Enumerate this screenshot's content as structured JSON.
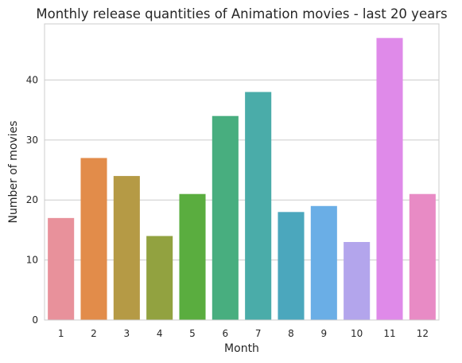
{
  "chart_data": {
    "type": "bar",
    "title": "Monthly release quantities of Animation movies - last 20 years",
    "xlabel": "Month",
    "ylabel": "Number of movies",
    "categories": [
      "1",
      "2",
      "3",
      "4",
      "5",
      "6",
      "7",
      "8",
      "9",
      "10",
      "11",
      "12"
    ],
    "values": [
      17,
      27,
      24,
      14,
      21,
      34,
      38,
      18,
      19,
      13,
      47,
      21
    ],
    "ylim": [
      0,
      49.35
    ],
    "yticks": [
      0,
      10,
      20,
      30,
      40
    ],
    "ytick_labels": [
      "0",
      "10",
      "20",
      "30",
      "40"
    ],
    "grid": "horizontal",
    "legend": "none",
    "colors": [
      "#e8919b",
      "#e28c4a",
      "#b59a45",
      "#92a240",
      "#5aad3f",
      "#48ae7f",
      "#4aaca9",
      "#4ba7bd",
      "#6aaee6",
      "#b3a5ec",
      "#df8ae9",
      "#e88bc5"
    ],
    "axis_color": "#cccccc",
    "grid_color": "#cccccc"
  }
}
